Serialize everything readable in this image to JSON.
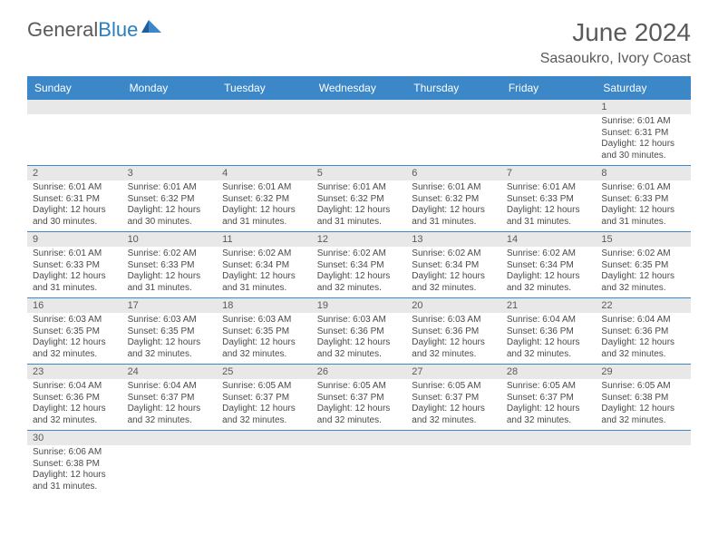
{
  "brand": {
    "part1": "General",
    "part2": "Blue"
  },
  "title": "June 2024",
  "location": "Sasaoukro, Ivory Coast",
  "colors": {
    "header_bg": "#3b87c8",
    "header_text": "#ffffff",
    "strip_bg": "#e8e8e8",
    "border": "#3b87c8",
    "text": "#4a4a4a",
    "title_text": "#5a5a5a"
  },
  "day_names": [
    "Sunday",
    "Monday",
    "Tuesday",
    "Wednesday",
    "Thursday",
    "Friday",
    "Saturday"
  ],
  "weeks": [
    {
      "nums": [
        "",
        "",
        "",
        "",
        "",
        "",
        "1"
      ],
      "cells": [
        null,
        null,
        null,
        null,
        null,
        null,
        {
          "sunrise": "Sunrise: 6:01 AM",
          "sunset": "Sunset: 6:31 PM",
          "daylight1": "Daylight: 12 hours",
          "daylight2": "and 30 minutes."
        }
      ]
    },
    {
      "nums": [
        "2",
        "3",
        "4",
        "5",
        "6",
        "7",
        "8"
      ],
      "cells": [
        {
          "sunrise": "Sunrise: 6:01 AM",
          "sunset": "Sunset: 6:31 PM",
          "daylight1": "Daylight: 12 hours",
          "daylight2": "and 30 minutes."
        },
        {
          "sunrise": "Sunrise: 6:01 AM",
          "sunset": "Sunset: 6:32 PM",
          "daylight1": "Daylight: 12 hours",
          "daylight2": "and 30 minutes."
        },
        {
          "sunrise": "Sunrise: 6:01 AM",
          "sunset": "Sunset: 6:32 PM",
          "daylight1": "Daylight: 12 hours",
          "daylight2": "and 31 minutes."
        },
        {
          "sunrise": "Sunrise: 6:01 AM",
          "sunset": "Sunset: 6:32 PM",
          "daylight1": "Daylight: 12 hours",
          "daylight2": "and 31 minutes."
        },
        {
          "sunrise": "Sunrise: 6:01 AM",
          "sunset": "Sunset: 6:32 PM",
          "daylight1": "Daylight: 12 hours",
          "daylight2": "and 31 minutes."
        },
        {
          "sunrise": "Sunrise: 6:01 AM",
          "sunset": "Sunset: 6:33 PM",
          "daylight1": "Daylight: 12 hours",
          "daylight2": "and 31 minutes."
        },
        {
          "sunrise": "Sunrise: 6:01 AM",
          "sunset": "Sunset: 6:33 PM",
          "daylight1": "Daylight: 12 hours",
          "daylight2": "and 31 minutes."
        }
      ]
    },
    {
      "nums": [
        "9",
        "10",
        "11",
        "12",
        "13",
        "14",
        "15"
      ],
      "cells": [
        {
          "sunrise": "Sunrise: 6:01 AM",
          "sunset": "Sunset: 6:33 PM",
          "daylight1": "Daylight: 12 hours",
          "daylight2": "and 31 minutes."
        },
        {
          "sunrise": "Sunrise: 6:02 AM",
          "sunset": "Sunset: 6:33 PM",
          "daylight1": "Daylight: 12 hours",
          "daylight2": "and 31 minutes."
        },
        {
          "sunrise": "Sunrise: 6:02 AM",
          "sunset": "Sunset: 6:34 PM",
          "daylight1": "Daylight: 12 hours",
          "daylight2": "and 31 minutes."
        },
        {
          "sunrise": "Sunrise: 6:02 AM",
          "sunset": "Sunset: 6:34 PM",
          "daylight1": "Daylight: 12 hours",
          "daylight2": "and 32 minutes."
        },
        {
          "sunrise": "Sunrise: 6:02 AM",
          "sunset": "Sunset: 6:34 PM",
          "daylight1": "Daylight: 12 hours",
          "daylight2": "and 32 minutes."
        },
        {
          "sunrise": "Sunrise: 6:02 AM",
          "sunset": "Sunset: 6:34 PM",
          "daylight1": "Daylight: 12 hours",
          "daylight2": "and 32 minutes."
        },
        {
          "sunrise": "Sunrise: 6:02 AM",
          "sunset": "Sunset: 6:35 PM",
          "daylight1": "Daylight: 12 hours",
          "daylight2": "and 32 minutes."
        }
      ]
    },
    {
      "nums": [
        "16",
        "17",
        "18",
        "19",
        "20",
        "21",
        "22"
      ],
      "cells": [
        {
          "sunrise": "Sunrise: 6:03 AM",
          "sunset": "Sunset: 6:35 PM",
          "daylight1": "Daylight: 12 hours",
          "daylight2": "and 32 minutes."
        },
        {
          "sunrise": "Sunrise: 6:03 AM",
          "sunset": "Sunset: 6:35 PM",
          "daylight1": "Daylight: 12 hours",
          "daylight2": "and 32 minutes."
        },
        {
          "sunrise": "Sunrise: 6:03 AM",
          "sunset": "Sunset: 6:35 PM",
          "daylight1": "Daylight: 12 hours",
          "daylight2": "and 32 minutes."
        },
        {
          "sunrise": "Sunrise: 6:03 AM",
          "sunset": "Sunset: 6:36 PM",
          "daylight1": "Daylight: 12 hours",
          "daylight2": "and 32 minutes."
        },
        {
          "sunrise": "Sunrise: 6:03 AM",
          "sunset": "Sunset: 6:36 PM",
          "daylight1": "Daylight: 12 hours",
          "daylight2": "and 32 minutes."
        },
        {
          "sunrise": "Sunrise: 6:04 AM",
          "sunset": "Sunset: 6:36 PM",
          "daylight1": "Daylight: 12 hours",
          "daylight2": "and 32 minutes."
        },
        {
          "sunrise": "Sunrise: 6:04 AM",
          "sunset": "Sunset: 6:36 PM",
          "daylight1": "Daylight: 12 hours",
          "daylight2": "and 32 minutes."
        }
      ]
    },
    {
      "nums": [
        "23",
        "24",
        "25",
        "26",
        "27",
        "28",
        "29"
      ],
      "cells": [
        {
          "sunrise": "Sunrise: 6:04 AM",
          "sunset": "Sunset: 6:36 PM",
          "daylight1": "Daylight: 12 hours",
          "daylight2": "and 32 minutes."
        },
        {
          "sunrise": "Sunrise: 6:04 AM",
          "sunset": "Sunset: 6:37 PM",
          "daylight1": "Daylight: 12 hours",
          "daylight2": "and 32 minutes."
        },
        {
          "sunrise": "Sunrise: 6:05 AM",
          "sunset": "Sunset: 6:37 PM",
          "daylight1": "Daylight: 12 hours",
          "daylight2": "and 32 minutes."
        },
        {
          "sunrise": "Sunrise: 6:05 AM",
          "sunset": "Sunset: 6:37 PM",
          "daylight1": "Daylight: 12 hours",
          "daylight2": "and 32 minutes."
        },
        {
          "sunrise": "Sunrise: 6:05 AM",
          "sunset": "Sunset: 6:37 PM",
          "daylight1": "Daylight: 12 hours",
          "daylight2": "and 32 minutes."
        },
        {
          "sunrise": "Sunrise: 6:05 AM",
          "sunset": "Sunset: 6:37 PM",
          "daylight1": "Daylight: 12 hours",
          "daylight2": "and 32 minutes."
        },
        {
          "sunrise": "Sunrise: 6:05 AM",
          "sunset": "Sunset: 6:38 PM",
          "daylight1": "Daylight: 12 hours",
          "daylight2": "and 32 minutes."
        }
      ]
    },
    {
      "nums": [
        "30",
        "",
        "",
        "",
        "",
        "",
        ""
      ],
      "cells": [
        {
          "sunrise": "Sunrise: 6:06 AM",
          "sunset": "Sunset: 6:38 PM",
          "daylight1": "Daylight: 12 hours",
          "daylight2": "and 31 minutes."
        },
        null,
        null,
        null,
        null,
        null,
        null
      ]
    }
  ]
}
